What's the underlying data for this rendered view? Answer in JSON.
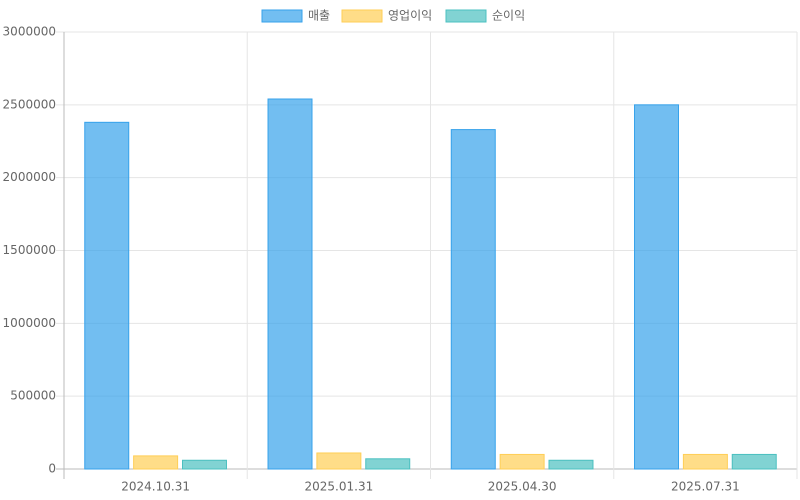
{
  "chart_data": {
    "type": "bar",
    "categories": [
      "2024.10.31",
      "2025.01.31",
      "2025.04.30",
      "2025.07.31"
    ],
    "series": [
      {
        "name": "매출",
        "color": "#36a2eb",
        "values": [
          2380000,
          2540000,
          2330000,
          2500000
        ]
      },
      {
        "name": "영업이익",
        "color": "#ffce56",
        "values": [
          90000,
          110000,
          100000,
          100000
        ]
      },
      {
        "name": "순이익",
        "color": "#4bc0c0",
        "values": [
          60000,
          70000,
          60000,
          100000
        ]
      }
    ],
    "ylim": [
      0,
      3000000
    ],
    "yticks": [
      0,
      500000,
      1000000,
      1500000,
      2000000,
      2500000,
      3000000
    ],
    "grid": true,
    "legend": "top"
  }
}
